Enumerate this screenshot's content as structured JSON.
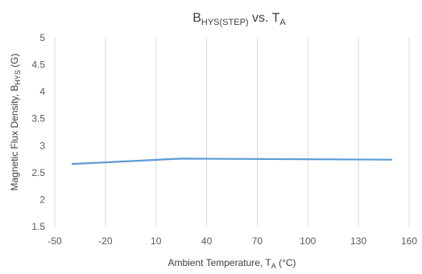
{
  "chart_data": {
    "type": "line",
    "title": {
      "main": "B",
      "sub": "HYS(STEP)",
      "mid": " vs. T",
      "sub2": "A"
    },
    "xlabel": {
      "main": "Ambient Temperature, T",
      "sub": "A",
      "tail": " (°C)"
    },
    "ylabel": {
      "main": "Magnetic Flux Density, B",
      "sub": "HYS",
      "tail": " (G)"
    },
    "xlim": [
      -50,
      160
    ],
    "ylim": [
      1.5,
      5
    ],
    "x_ticks": [
      -50,
      -20,
      10,
      40,
      70,
      100,
      130,
      160
    ],
    "y_ticks": [
      "1.5",
      "2",
      "2.5",
      "3",
      "3.5",
      "4",
      "4.5",
      "5"
    ],
    "grid": "vertical",
    "series": [
      {
        "color": "#5b9bd5",
        "x": [
          -40,
          25,
          150
        ],
        "y": [
          2.66,
          2.76,
          2.74
        ]
      }
    ]
  }
}
